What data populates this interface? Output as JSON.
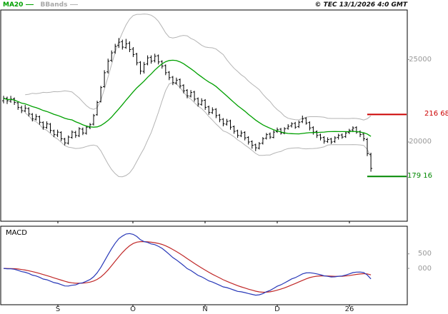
{
  "header": {
    "legend": [
      {
        "label": "MA20",
        "color": "#00a000"
      },
      {
        "label": "BBands",
        "color": "#b0b0b0"
      }
    ],
    "copyright": "© TEC 13/1/2026 4:0 GMT"
  },
  "price_panel": {
    "y_ticks": [
      {
        "label": "25000",
        "value": 25000
      },
      {
        "label": "20000",
        "value": 20000
      }
    ],
    "levels": [
      {
        "label": "216 68",
        "value": 21668,
        "color": "#cc0000",
        "name": "resistance"
      },
      {
        "label": "179 16",
        "value": 17916,
        "color": "#008800",
        "name": "support"
      }
    ]
  },
  "macd_panel": {
    "label": "MACD",
    "y_ticks": [
      {
        "label": "500",
        "value": 500
      },
      {
        "label": "000",
        "value": 0
      }
    ],
    "colors": {
      "macd": "#2838b8",
      "signal": "#c02828"
    }
  },
  "x_ticks": [
    "S",
    "O",
    "N",
    "D",
    "26"
  ],
  "chart_data": {
    "type": "candlestick",
    "title": "",
    "x_tick_labels": [
      "S",
      "O",
      "N",
      "D",
      "26"
    ],
    "y_axis": {
      "ticks": [
        25000,
        20000
      ]
    },
    "macd_axis": {
      "ticks": [
        500,
        0
      ]
    },
    "levels": [
      21668,
      17916
    ],
    "overlays": [
      {
        "name": "MA20",
        "period": 20,
        "color": "#00a000"
      },
      {
        "name": "BBands",
        "period": 20,
        "stdev": 2,
        "color": "#b4b4b4"
      }
    ],
    "indicator": {
      "name": "MACD",
      "fast": 12,
      "slow": 26,
      "signal": 9
    },
    "ohlc": [
      [
        22500,
        22800,
        22350,
        22650
      ],
      [
        22650,
        22750,
        22300,
        22500
      ],
      [
        22480,
        22800,
        22380,
        22600
      ],
      [
        22620,
        22700,
        22250,
        22400
      ],
      [
        22380,
        22450,
        21950,
        22100
      ],
      [
        22080,
        22200,
        21750,
        21900
      ],
      [
        21880,
        22250,
        21800,
        22050
      ],
      [
        22030,
        22100,
        21550,
        21700
      ],
      [
        21680,
        21750,
        21250,
        21400
      ],
      [
        21380,
        21700,
        21300,
        21550
      ],
      [
        21530,
        21600,
        21050,
        21200
      ],
      [
        21180,
        21250,
        20750,
        20900
      ],
      [
        20880,
        21250,
        20800,
        21100
      ],
      [
        21080,
        21150,
        20550,
        20700
      ],
      [
        20680,
        20750,
        20300,
        20450
      ],
      [
        20430,
        20750,
        20300,
        20600
      ],
      [
        20580,
        20650,
        20050,
        20200
      ],
      [
        20180,
        20250,
        19800,
        19950
      ],
      [
        19930,
        20400,
        19850,
        20300
      ],
      [
        20280,
        20700,
        20200,
        20600
      ],
      [
        20580,
        20680,
        20250,
        20400
      ],
      [
        20380,
        20900,
        20300,
        20800
      ],
      [
        20780,
        20880,
        20420,
        20550
      ],
      [
        20530,
        21000,
        20450,
        20900
      ],
      [
        20880,
        21150,
        20780,
        21050
      ],
      [
        21080,
        21700,
        21000,
        21600
      ],
      [
        21650,
        22500,
        21600,
        22400
      ],
      [
        22450,
        23400,
        22400,
        23300
      ],
      [
        23350,
        24350,
        23300,
        24200
      ],
      [
        24250,
        25050,
        24150,
        24900
      ],
      [
        24950,
        25550,
        24850,
        25400
      ],
      [
        25450,
        25950,
        25350,
        25800
      ],
      [
        25850,
        26300,
        25700,
        26050
      ],
      [
        26080,
        26200,
        25600,
        25750
      ],
      [
        25720,
        26250,
        25650,
        25950
      ],
      [
        25980,
        26100,
        25450,
        25600
      ],
      [
        25630,
        25750,
        25150,
        25300
      ],
      [
        25330,
        25400,
        24650,
        24800
      ],
      [
        24830,
        24900,
        24100,
        24300
      ],
      [
        24280,
        24850,
        24150,
        24700
      ],
      [
        24730,
        25250,
        24650,
        25100
      ],
      [
        25130,
        25250,
        24750,
        24900
      ],
      [
        24930,
        25350,
        24820,
        25200
      ],
      [
        25230,
        25300,
        24700,
        24850
      ],
      [
        24880,
        24950,
        24450,
        24600
      ],
      [
        24630,
        24700,
        24050,
        24200
      ],
      [
        24230,
        24300,
        23750,
        23900
      ],
      [
        23930,
        24000,
        23450,
        23600
      ],
      [
        23580,
        23900,
        23480,
        23750
      ],
      [
        23780,
        23850,
        23250,
        23400
      ],
      [
        23430,
        23500,
        22950,
        23100
      ],
      [
        23130,
        23200,
        22650,
        22800
      ],
      [
        22780,
        23150,
        22700,
        23000
      ],
      [
        23030,
        23100,
        22450,
        22600
      ],
      [
        22630,
        22700,
        22150,
        22300
      ],
      [
        22280,
        22650,
        22200,
        22500
      ],
      [
        22530,
        22600,
        21950,
        22100
      ],
      [
        22130,
        22200,
        21650,
        21800
      ],
      [
        21780,
        22100,
        21700,
        21950
      ],
      [
        21980,
        22050,
        21450,
        21600
      ],
      [
        21630,
        21700,
        21200,
        21350
      ],
      [
        21380,
        21450,
        20950,
        21100
      ],
      [
        21080,
        21400,
        21000,
        21250
      ],
      [
        21280,
        21350,
        20750,
        20900
      ],
      [
        20930,
        21000,
        20500,
        20650
      ],
      [
        20680,
        20750,
        20250,
        20400
      ],
      [
        20380,
        20700,
        20300,
        20550
      ],
      [
        20580,
        20650,
        20100,
        20250
      ],
      [
        20280,
        20350,
        19850,
        20000
      ],
      [
        20030,
        20100,
        19600,
        19800
      ],
      [
        19830,
        19900,
        19450,
        19650
      ],
      [
        19630,
        20000,
        19550,
        19900
      ],
      [
        19930,
        20300,
        19850,
        20200
      ],
      [
        20230,
        20550,
        20150,
        20450
      ],
      [
        20480,
        20580,
        20180,
        20300
      ],
      [
        20280,
        20700,
        20220,
        20600
      ],
      [
        20630,
        20880,
        20550,
        20750
      ],
      [
        20780,
        20850,
        20450,
        20550
      ],
      [
        20530,
        20900,
        20470,
        20800
      ],
      [
        20830,
        21080,
        20750,
        20950
      ],
      [
        20980,
        21200,
        20880,
        21100
      ],
      [
        21130,
        21220,
        20800,
        20900
      ],
      [
        20930,
        21300,
        20850,
        21200
      ],
      [
        21230,
        21600,
        21150,
        21400
      ],
      [
        21430,
        21500,
        21050,
        21150
      ],
      [
        21180,
        21250,
        20700,
        20850
      ],
      [
        20880,
        20950,
        20450,
        20600
      ],
      [
        20630,
        20700,
        20250,
        20400
      ],
      [
        20430,
        20500,
        20100,
        20250
      ],
      [
        20280,
        20350,
        19900,
        20050
      ],
      [
        20030,
        20280,
        19950,
        20150
      ],
      [
        20180,
        20250,
        19880,
        20000
      ],
      [
        20030,
        20350,
        19950,
        20250
      ],
      [
        20280,
        20500,
        20150,
        20400
      ],
      [
        20430,
        20520,
        20200,
        20300
      ],
      [
        20330,
        20650,
        20250,
        20550
      ],
      [
        20580,
        20800,
        20480,
        20700
      ],
      [
        20730,
        20950,
        20600,
        20850
      ],
      [
        20880,
        20950,
        20500,
        20600
      ],
      [
        20630,
        20700,
        20300,
        20450
      ],
      [
        20480,
        20550,
        20050,
        20200
      ],
      [
        20150,
        20250,
        19150,
        19300
      ],
      [
        19250,
        19350,
        18200,
        18400
      ]
    ]
  }
}
